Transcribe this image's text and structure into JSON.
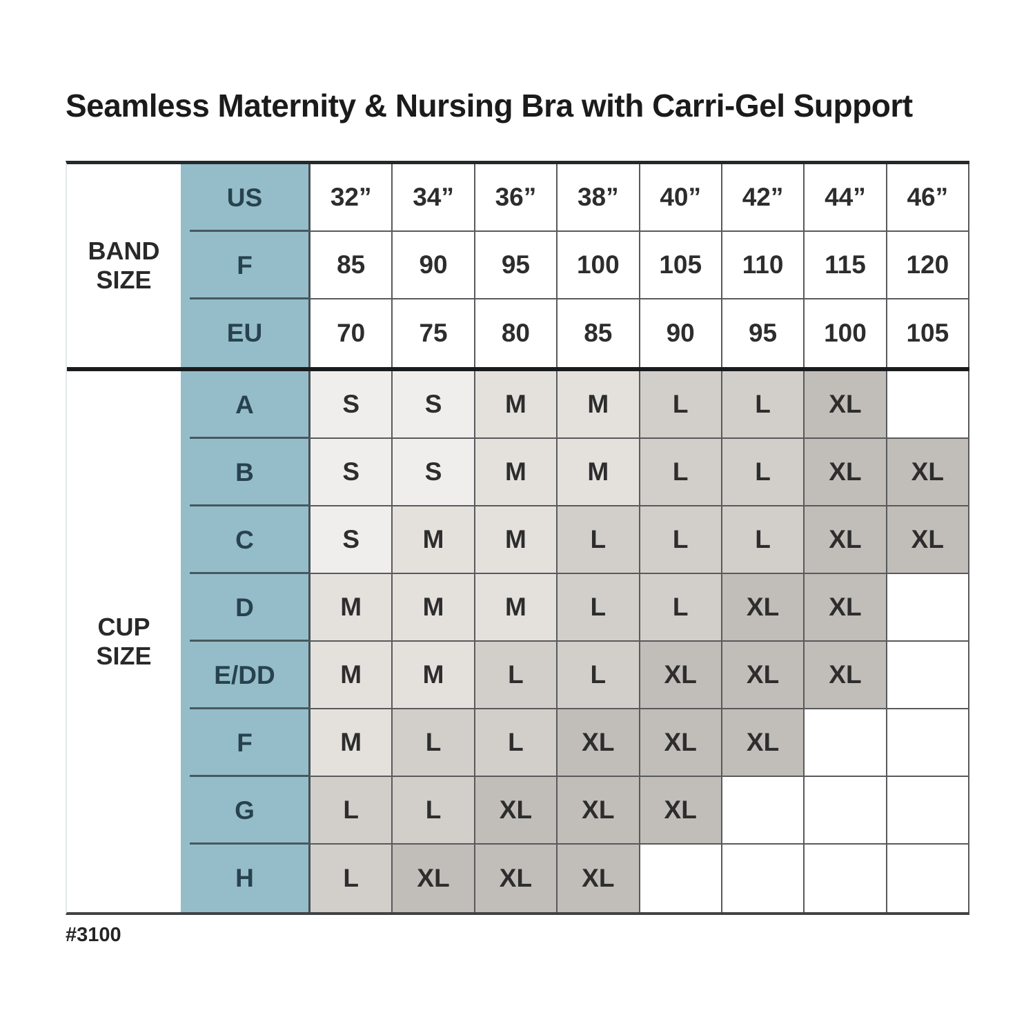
{
  "footnote": "#3100",
  "colors": {
    "blue": "#94bdc9",
    "blue_text": "#27424e",
    "blue_divider": "#46585f",
    "grid_line": "#58595c",
    "table_top": "#26292b",
    "section_divider": "#191b1d",
    "table_bottom": "#404245",
    "shade_s": "#f0eeec",
    "shade_m": "#e4e1dd",
    "shade_l": "#d2cfca",
    "shade_xl": "#c1bdb8",
    "text_dark": "#2d2d2d"
  },
  "chart_data": {
    "type": "table",
    "title": "Seamless Maternity & Nursing Bra with Carri-Gel Support",
    "band_columns_inches": [
      "32”",
      "34”",
      "36”",
      "38”",
      "40”",
      "42”",
      "44”",
      "46”"
    ],
    "sections": [
      {
        "label": "BAND\nSIZE",
        "rows": [
          {
            "header": "US",
            "values": [
              "32”",
              "34”",
              "36”",
              "38”",
              "40”",
              "42”",
              "44”",
              "46”"
            ]
          },
          {
            "header": "F",
            "values": [
              "85",
              "90",
              "95",
              "100",
              "105",
              "110",
              "115",
              "120"
            ]
          },
          {
            "header": "EU",
            "values": [
              "70",
              "75",
              "80",
              "85",
              "90",
              "95",
              "100",
              "105"
            ]
          }
        ]
      },
      {
        "label": "CUP\nSIZE",
        "rows": [
          {
            "header": "A",
            "values": [
              "S",
              "S",
              "M",
              "M",
              "L",
              "L",
              "XL",
              ""
            ]
          },
          {
            "header": "B",
            "values": [
              "S",
              "S",
              "M",
              "M",
              "L",
              "L",
              "XL",
              "XL"
            ]
          },
          {
            "header": "C",
            "values": [
              "S",
              "M",
              "M",
              "L",
              "L",
              "L",
              "XL",
              "XL"
            ]
          },
          {
            "header": "D",
            "values": [
              "M",
              "M",
              "M",
              "L",
              "L",
              "XL",
              "XL",
              ""
            ]
          },
          {
            "header": "E/DD",
            "values": [
              "M",
              "M",
              "L",
              "L",
              "XL",
              "XL",
              "XL",
              ""
            ]
          },
          {
            "header": "F",
            "values": [
              "M",
              "L",
              "L",
              "XL",
              "XL",
              "XL",
              "",
              ""
            ]
          },
          {
            "header": "G",
            "values": [
              "L",
              "L",
              "XL",
              "XL",
              "XL",
              "",
              "",
              ""
            ]
          },
          {
            "header": "H",
            "values": [
              "L",
              "XL",
              "XL",
              "XL",
              "",
              "",
              "",
              ""
            ]
          }
        ]
      }
    ],
    "legend": {
      "S": "lightest shade",
      "M": "light shade",
      "L": "medium shade",
      "XL": "dark shade"
    }
  }
}
